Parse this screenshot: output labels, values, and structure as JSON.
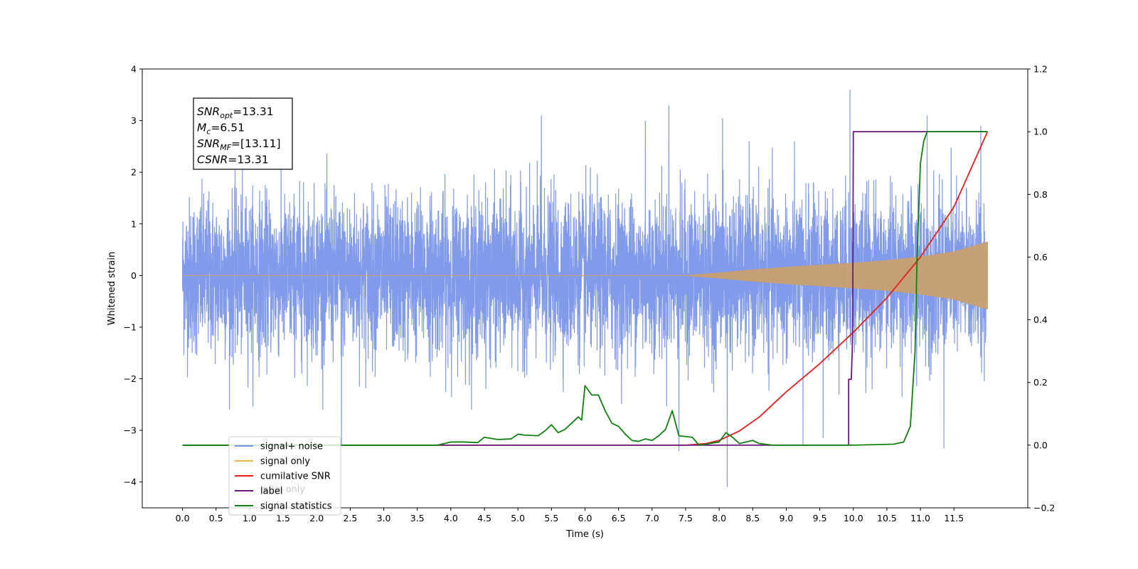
{
  "chart_data": {
    "type": "line",
    "xlabel": "Time (s)",
    "ylabel": "Whitened strain",
    "xlim": [
      -0.6,
      12.6
    ],
    "ylim": [
      -4.5,
      4
    ],
    "y2lim": [
      -0.2,
      1.2
    ],
    "xticks": [
      0.0,
      0.5,
      1.0,
      1.5,
      2.0,
      2.5,
      3.0,
      3.5,
      4.0,
      4.5,
      5.0,
      5.5,
      6.0,
      6.5,
      7.0,
      7.5,
      8.0,
      8.5,
      9.0,
      9.5,
      10.0,
      10.5,
      11.0,
      11.5
    ],
    "xtick_labels": [
      "0.0",
      "0.5",
      "1.0",
      "1.5",
      "2.0",
      "2.5",
      "3.0",
      "3.5",
      "4.0",
      "4.5",
      "5.0",
      "5.5",
      "6.0",
      "6.5",
      "7.0",
      "7.5",
      "8.0",
      "8.5",
      "9.0",
      "9.5",
      "10.0",
      "10.5",
      "11.0",
      "11.5"
    ],
    "yticks": [
      -4,
      -3,
      -2,
      -1,
      0,
      1,
      2,
      3,
      4
    ],
    "ytick_labels": [
      "−4",
      "−3",
      "−2",
      "−1",
      "0",
      "1",
      "2",
      "3",
      "4"
    ],
    "y2ticks": [
      -0.2,
      0.0,
      0.2,
      0.4,
      0.6,
      0.8,
      1.0,
      1.2
    ],
    "y2tick_labels": [
      "−0.2",
      "0.0",
      "0.2",
      "0.4",
      "0.6",
      "0.8",
      "1.0",
      "1.2"
    ],
    "grid": false,
    "legend_position": "lower-left",
    "annotation": {
      "lines": [
        {
          "main": "SNR",
          "sub": "opt",
          "rest": "=13.31"
        },
        {
          "main": "M",
          "sub": "c",
          "rest": "=6.51"
        },
        {
          "main": "SNR",
          "sub": "MF",
          "rest": "=[13.11]"
        },
        {
          "main": "CSNR",
          "sub": "",
          "rest": "=13.31"
        }
      ]
    },
    "series": [
      {
        "name": "signal+ noise",
        "axis": "left",
        "color": "#7a95e8",
        "kind": "noise_band",
        "noise_sigma": 0.75,
        "duration": 12.0,
        "spikes": [
          [
            2.37,
            -3.3
          ],
          [
            5.35,
            3.1
          ],
          [
            6.9,
            3.0
          ],
          [
            7.25,
            3.3
          ],
          [
            7.4,
            -3.4
          ],
          [
            8.05,
            3.05
          ],
          [
            8.12,
            -4.1
          ],
          [
            9.25,
            -3.3
          ],
          [
            9.55,
            -3.15
          ],
          [
            9.95,
            3.6
          ],
          [
            11.1,
            3.1
          ],
          [
            11.35,
            -3.35
          ],
          [
            11.9,
            2.9
          ]
        ]
      },
      {
        "name": "signal only",
        "axis": "left",
        "color": "#c8a070",
        "kind": "chirp_envelope",
        "x": [
          0.0,
          7.5,
          8.0,
          8.5,
          9.0,
          9.5,
          10.0,
          10.5,
          11.0,
          11.5,
          12.0
        ],
        "amplitude": [
          0.0,
          0.0,
          0.05,
          0.11,
          0.16,
          0.2,
          0.24,
          0.29,
          0.36,
          0.46,
          0.65
        ]
      },
      {
        "name": "cumilative SNR",
        "axis": "right",
        "color": "#e3201c",
        "x": [
          0.0,
          7.5,
          7.8,
          8.0,
          8.3,
          8.6,
          9.0,
          9.5,
          10.0,
          10.5,
          11.0,
          11.5,
          12.0
        ],
        "y": [
          0.0,
          0.0,
          0.005,
          0.015,
          0.045,
          0.09,
          0.17,
          0.26,
          0.36,
          0.47,
          0.6,
          0.76,
          1.0
        ]
      },
      {
        "name": "label",
        "axis": "right",
        "color": "#6a1a7a",
        "x": [
          0.0,
          9.93,
          9.93,
          9.97,
          9.99,
          10.0,
          12.0
        ],
        "y": [
          0.0,
          0.0,
          0.21,
          0.21,
          0.35,
          1.0,
          1.0
        ]
      },
      {
        "name": "signal statistics",
        "axis": "right",
        "color": "#118011",
        "x": [
          0.0,
          3.8,
          4.0,
          4.2,
          4.4,
          4.5,
          4.7,
          4.9,
          5.0,
          5.1,
          5.3,
          5.4,
          5.5,
          5.6,
          5.7,
          5.9,
          5.95,
          6.0,
          6.1,
          6.2,
          6.3,
          6.4,
          6.5,
          6.6,
          6.7,
          6.8,
          6.9,
          7.0,
          7.1,
          7.2,
          7.3,
          7.4,
          7.6,
          7.7,
          7.8,
          8.0,
          8.1,
          8.2,
          8.3,
          8.5,
          8.6,
          8.8,
          9.0,
          10.0,
          10.6,
          10.75,
          10.85,
          10.92,
          10.95,
          11.0,
          11.05,
          11.1,
          12.0
        ],
        "y": [
          0.0,
          0.0,
          0.01,
          0.01,
          0.008,
          0.025,
          0.018,
          0.02,
          0.035,
          0.032,
          0.03,
          0.045,
          0.065,
          0.04,
          0.05,
          0.09,
          0.08,
          0.19,
          0.16,
          0.16,
          0.11,
          0.07,
          0.06,
          0.035,
          0.015,
          0.012,
          0.02,
          0.015,
          0.03,
          0.05,
          0.11,
          0.03,
          0.025,
          0.0,
          0.003,
          0.01,
          0.04,
          0.025,
          0.005,
          0.015,
          0.005,
          0.0,
          0.0,
          0.0,
          0.003,
          0.01,
          0.06,
          0.3,
          0.6,
          0.9,
          0.97,
          1.0,
          1.0
        ]
      }
    ],
    "legend_labels": [
      "signal+ noise",
      "signal only",
      "cumilative SNR",
      "label",
      "signal statistics"
    ],
    "legend_hidden_text": "label only",
    "legend_colors": [
      "#7a95e8",
      "#f5b850",
      "#e3201c",
      "#6a1a7a",
      "#118011"
    ]
  }
}
